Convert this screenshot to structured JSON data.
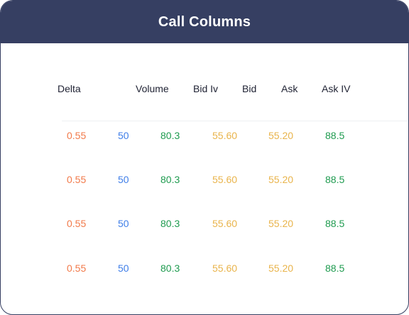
{
  "title": "Call Columns",
  "columns": [
    "Delta",
    "Volume",
    "Bid Iv",
    "Bid",
    "Ask",
    "Ask IV"
  ],
  "rows": [
    [
      "0.55",
      "50",
      "80.3",
      "55.60",
      "55.20",
      "88.5"
    ],
    [
      "0.55",
      "50",
      "80.3",
      "55.60",
      "55.20",
      "88.5"
    ],
    [
      "0.55",
      "50",
      "80.3",
      "55.60",
      "55.20",
      "88.5"
    ],
    [
      "0.55",
      "50",
      "80.3",
      "55.60",
      "55.20",
      "88.5"
    ]
  ],
  "colors": {
    "header_bg": "#363f62",
    "delta": "#f27a4a",
    "volume": "#3f7ee8",
    "iv": "#1e9b4f",
    "price": "#e9b44c"
  }
}
